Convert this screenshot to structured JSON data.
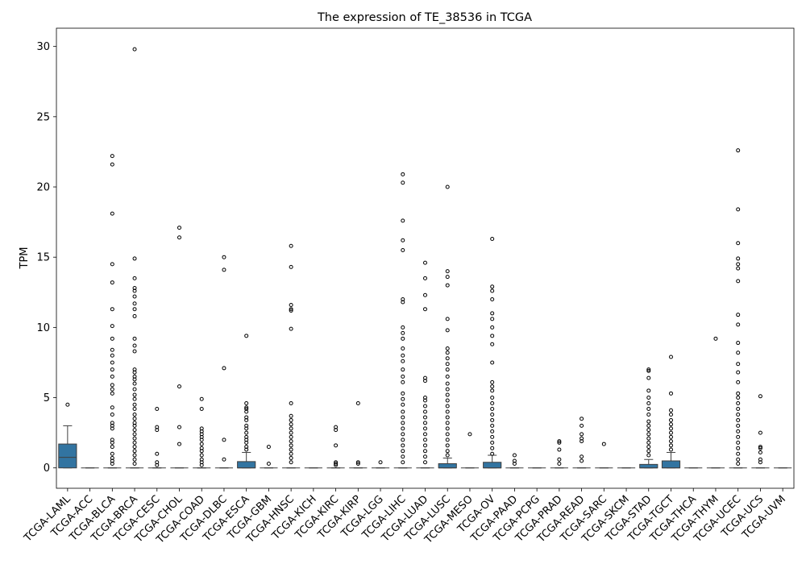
{
  "chart_data": {
    "type": "box",
    "title": "The expression of TE_38536 in TCGA",
    "ylabel": "TPM",
    "color": "#3274a1",
    "ylim": [
      -1.45,
      31.3
    ],
    "yticks": [
      0,
      5,
      10,
      15,
      20,
      25,
      30
    ],
    "categories": [
      "TCGA-LAML",
      "TCGA-ACC",
      "TCGA-BLCA",
      "TCGA-BRCA",
      "TCGA-CESC",
      "TCGA-CHOL",
      "TCGA-COAD",
      "TCGA-DLBC",
      "TCGA-ESCA",
      "TCGA-GBM",
      "TCGA-HNSC",
      "TCGA-KICH",
      "TCGA-KIRC",
      "TCGA-KIRP",
      "TCGA-LGG",
      "TCGA-LIHC",
      "TCGA-LUAD",
      "TCGA-LUSC",
      "TCGA-MESO",
      "TCGA-OV",
      "TCGA-PAAD",
      "TCGA-PCPG",
      "TCGA-PRAD",
      "TCGA-READ",
      "TCGA-SARC",
      "TCGA-SKCM",
      "TCGA-STAD",
      "TCGA-TGCT",
      "TCGA-THCA",
      "TCGA-THYM",
      "TCGA-UCEC",
      "TCGA-UCS",
      "TCGA-UVM"
    ],
    "boxes": [
      {
        "whislo": 0,
        "q1": 0,
        "median": 0.75,
        "q3": 1.7,
        "whishi": 3.0,
        "fliers": [
          4.5
        ]
      },
      {
        "whislo": 0,
        "q1": 0,
        "median": 0,
        "q3": 0,
        "whishi": 0,
        "fliers": []
      },
      {
        "whislo": 0,
        "q1": 0,
        "median": 0,
        "q3": 0,
        "whishi": 0,
        "fliers": [
          22.2,
          21.6,
          18.1,
          14.5,
          13.2,
          11.3,
          10.1,
          9.2,
          8.4,
          8.0,
          7.5,
          7.0,
          6.5,
          5.9,
          5.6,
          5.3,
          4.3,
          3.8,
          3.2,
          3.0,
          2.8,
          2.0,
          1.8,
          1.5,
          1.0,
          0.7,
          0.5,
          0.3
        ]
      },
      {
        "whislo": 0,
        "q1": 0,
        "median": 0,
        "q3": 0,
        "whishi": 0,
        "fliers": [
          29.8,
          14.9,
          13.5,
          12.8,
          12.6,
          12.2,
          11.7,
          11.3,
          10.8,
          9.2,
          8.7,
          8.3,
          7.0,
          6.8,
          6.5,
          6.3,
          6.0,
          5.6,
          5.2,
          4.9,
          4.5,
          4.2,
          3.8,
          3.5,
          3.2,
          3.0,
          2.7,
          2.4,
          2.1,
          1.8,
          1.5,
          1.2,
          0.9,
          0.6,
          0.3
        ]
      },
      {
        "whislo": 0,
        "q1": 0,
        "median": 0,
        "q3": 0,
        "whishi": 0,
        "fliers": [
          4.2,
          2.9,
          2.7,
          1.0,
          0.4,
          0.2
        ]
      },
      {
        "whislo": 0,
        "q1": 0,
        "median": 0,
        "q3": 0,
        "whishi": 0,
        "fliers": [
          17.1,
          16.4,
          5.8,
          2.9,
          1.7
        ]
      },
      {
        "whislo": 0,
        "q1": 0,
        "median": 0,
        "q3": 0,
        "whishi": 0,
        "fliers": [
          4.9,
          4.2,
          2.8,
          2.6,
          2.4,
          2.2,
          2.0,
          1.7,
          1.4,
          1.2,
          0.9,
          0.6,
          0.4,
          0.2
        ]
      },
      {
        "whislo": 0,
        "q1": 0,
        "median": 0,
        "q3": 0,
        "whishi": 0,
        "fliers": [
          15.0,
          14.1,
          7.1,
          2.0,
          0.6
        ]
      },
      {
        "whislo": 0,
        "q1": 0,
        "median": 0,
        "q3": 0.45,
        "whishi": 1.1,
        "fliers": [
          9.4,
          4.6,
          4.3,
          4.2,
          4.0,
          3.6,
          3.4,
          3.0,
          2.8,
          2.5,
          2.2,
          2.0,
          1.8,
          1.5,
          1.3
        ]
      },
      {
        "whislo": 0,
        "q1": 0,
        "median": 0,
        "q3": 0,
        "whishi": 0,
        "fliers": [
          1.5,
          0.3
        ]
      },
      {
        "whislo": 0,
        "q1": 0,
        "median": 0,
        "q3": 0,
        "whishi": 0,
        "fliers": [
          15.8,
          14.3,
          11.6,
          11.3,
          11.2,
          9.9,
          4.6,
          3.7,
          3.4,
          3.1,
          2.8,
          2.5,
          2.2,
          1.9,
          1.6,
          1.3,
          1.0,
          0.7,
          0.4
        ]
      },
      {
        "whislo": 0,
        "q1": 0,
        "median": 0,
        "q3": 0,
        "whishi": 0,
        "fliers": []
      },
      {
        "whislo": 0,
        "q1": 0,
        "median": 0,
        "q3": 0,
        "whishi": 0,
        "fliers": [
          2.9,
          2.7,
          1.6,
          0.4,
          0.3,
          0.2
        ]
      },
      {
        "whislo": 0,
        "q1": 0,
        "median": 0,
        "q3": 0,
        "whishi": 0,
        "fliers": [
          4.6,
          0.4,
          0.3
        ]
      },
      {
        "whislo": 0,
        "q1": 0,
        "median": 0,
        "q3": 0,
        "whishi": 0,
        "fliers": [
          0.4
        ]
      },
      {
        "whislo": 0,
        "q1": 0,
        "median": 0,
        "q3": 0,
        "whishi": 0,
        "fliers": [
          20.9,
          20.3,
          17.6,
          16.2,
          15.5,
          12.0,
          11.8,
          10.0,
          9.6,
          9.2,
          8.5,
          8.0,
          7.6,
          7.0,
          6.5,
          6.1,
          5.3,
          4.9,
          4.5,
          4.0,
          3.6,
          3.2,
          2.8,
          2.4,
          2.0,
          1.6,
          1.2,
          0.8,
          0.4
        ]
      },
      {
        "whislo": 0,
        "q1": 0,
        "median": 0,
        "q3": 0,
        "whishi": 0,
        "fliers": [
          14.6,
          13.5,
          12.3,
          11.3,
          6.4,
          6.2,
          5.0,
          4.8,
          4.4,
          4.0,
          3.6,
          3.2,
          2.8,
          2.4,
          2.0,
          1.6,
          1.2,
          0.8,
          0.4
        ]
      },
      {
        "whislo": 0,
        "q1": 0,
        "median": 0,
        "q3": 0.3,
        "whishi": 0.7,
        "fliers": [
          20.0,
          14.0,
          13.6,
          13.0,
          10.6,
          9.8,
          8.5,
          8.2,
          7.8,
          7.4,
          7.0,
          6.5,
          6.0,
          5.6,
          5.2,
          4.8,
          4.4,
          4.0,
          3.6,
          3.2,
          2.8,
          2.4,
          2.0,
          1.6,
          1.2,
          0.9
        ]
      },
      {
        "whislo": 0,
        "q1": 0,
        "median": 0,
        "q3": 0,
        "whishi": 0,
        "fliers": [
          2.4
        ]
      },
      {
        "whislo": 0,
        "q1": 0,
        "median": 0,
        "q3": 0.4,
        "whishi": 0.9,
        "fliers": [
          16.3,
          12.9,
          12.6,
          12.0,
          11.0,
          10.6,
          10.0,
          9.4,
          8.8,
          7.5,
          6.1,
          5.8,
          5.5,
          5.0,
          4.6,
          4.2,
          3.8,
          3.4,
          3.0,
          2.6,
          2.2,
          1.8,
          1.4,
          1.0
        ]
      },
      {
        "whislo": 0,
        "q1": 0,
        "median": 0,
        "q3": 0,
        "whishi": 0,
        "fliers": [
          0.9,
          0.5,
          0.3
        ]
      },
      {
        "whislo": 0,
        "q1": 0,
        "median": 0,
        "q3": 0,
        "whishi": 0,
        "fliers": []
      },
      {
        "whislo": 0,
        "q1": 0,
        "median": 0,
        "q3": 0,
        "whishi": 0,
        "fliers": [
          1.9,
          1.8,
          1.3,
          0.6,
          0.3
        ]
      },
      {
        "whislo": 0,
        "q1": 0,
        "median": 0,
        "q3": 0,
        "whishi": 0,
        "fliers": [
          3.5,
          3.0,
          2.4,
          2.1,
          1.9,
          0.8,
          0.5
        ]
      },
      {
        "whislo": 0,
        "q1": 0,
        "median": 0,
        "q3": 0,
        "whishi": 0,
        "fliers": [
          1.7
        ]
      },
      {
        "whislo": 0,
        "q1": 0,
        "median": 0,
        "q3": 0,
        "whishi": 0,
        "fliers": []
      },
      {
        "whislo": 0,
        "q1": 0,
        "median": 0,
        "q3": 0.25,
        "whishi": 0.6,
        "fliers": [
          7.0,
          6.9,
          6.4,
          5.5,
          5.0,
          4.6,
          4.2,
          3.8,
          3.3,
          3.0,
          2.7,
          2.4,
          2.1,
          1.8,
          1.5,
          1.2,
          0.9
        ]
      },
      {
        "whislo": 0,
        "q1": 0,
        "median": 0,
        "q3": 0.5,
        "whishi": 1.1,
        "fliers": [
          7.9,
          5.3,
          4.1,
          3.8,
          3.4,
          3.1,
          2.8,
          2.5,
          2.2,
          1.9,
          1.6,
          1.3
        ]
      },
      {
        "whislo": 0,
        "q1": 0,
        "median": 0,
        "q3": 0,
        "whishi": 0,
        "fliers": []
      },
      {
        "whislo": 0,
        "q1": 0,
        "median": 0,
        "q3": 0,
        "whishi": 0,
        "fliers": [
          9.2
        ]
      },
      {
        "whislo": 0,
        "q1": 0,
        "median": 0,
        "q3": 0,
        "whishi": 0,
        "fliers": [
          22.6,
          18.4,
          16.0,
          14.9,
          14.5,
          14.2,
          13.3,
          10.9,
          10.2,
          8.9,
          8.2,
          7.4,
          6.8,
          6.1,
          5.3,
          5.0,
          4.6,
          4.2,
          3.8,
          3.4,
          3.0,
          2.6,
          2.2,
          1.8,
          1.4,
          1.0,
          0.6,
          0.3
        ]
      },
      {
        "whislo": 0,
        "q1": 0,
        "median": 0,
        "q3": 0,
        "whishi": 0,
        "fliers": [
          5.1,
          2.5,
          1.5,
          1.4,
          1.1,
          0.6,
          0.4
        ]
      },
      {
        "whislo": 0,
        "q1": 0,
        "median": 0,
        "q3": 0,
        "whishi": 0,
        "fliers": []
      }
    ]
  }
}
